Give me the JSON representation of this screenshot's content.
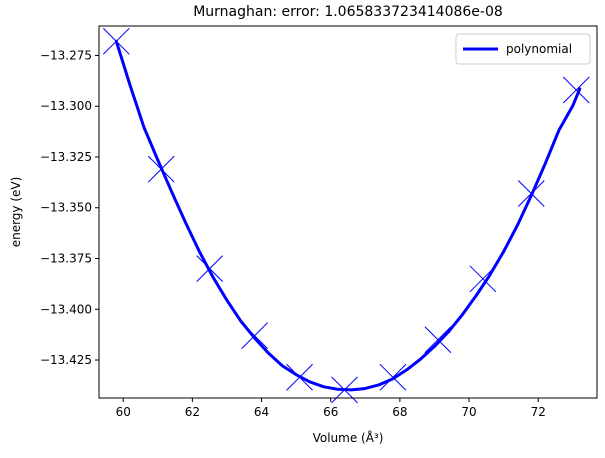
{
  "chart_data": {
    "type": "line",
    "title": "Murnaghan: error: 1.065833723414086e-08",
    "xlabel": "Volume (Å³)",
    "ylabel": "energy (eV)",
    "xlim": [
      59.3,
      73.7
    ],
    "ylim": [
      -13.4437,
      -13.2605
    ],
    "x_ticks": [
      60,
      62,
      64,
      66,
      68,
      70,
      72
    ],
    "y_ticks": [
      -13.275,
      -13.3,
      -13.325,
      -13.35,
      -13.375,
      -13.4,
      -13.425
    ],
    "x_tick_labels": [
      "60",
      "62",
      "64",
      "66",
      "68",
      "70",
      "72"
    ],
    "y_tick_labels": [
      "−13.275",
      "−13.300",
      "−13.325",
      "−13.350",
      "−13.375",
      "−13.400",
      "−13.425"
    ],
    "grid": false,
    "legend_position": "top-right",
    "series": [
      {
        "name": "polynomial",
        "kind": "line",
        "color": "#0000ff",
        "x": [
          59.8,
          60.2,
          60.6,
          61.0,
          61.4,
          61.8,
          62.2,
          62.6,
          63.0,
          63.4,
          63.8,
          64.2,
          64.6,
          65.0,
          65.4,
          65.8,
          66.2,
          66.6,
          67.0,
          67.4,
          67.8,
          68.2,
          68.6,
          69.0,
          69.4,
          69.8,
          70.2,
          70.6,
          71.0,
          71.4,
          71.8,
          72.2,
          72.6,
          73.0,
          73.2
        ],
        "y": [
          -13.268,
          -13.2898,
          -13.3104,
          -13.3265,
          -13.3421,
          -13.3572,
          -13.3715,
          -13.3843,
          -13.3956,
          -13.4058,
          -13.4142,
          -13.4216,
          -13.4278,
          -13.4322,
          -13.4358,
          -13.4382,
          -13.4394,
          -13.4397,
          -13.439,
          -13.4372,
          -13.4342,
          -13.4298,
          -13.4245,
          -13.4183,
          -13.4112,
          -13.4028,
          -13.3934,
          -13.3832,
          -13.3716,
          -13.3586,
          -13.344,
          -13.3284,
          -13.3118,
          -13.2998,
          -13.2915
        ]
      },
      {
        "name": "",
        "kind": "markers",
        "marker": "x",
        "color": "#0000ff",
        "x": [
          59.8,
          61.1,
          62.5,
          63.8,
          65.1,
          66.4,
          67.8,
          69.1,
          70.4,
          71.8,
          73.1
        ],
        "y": [
          -13.268,
          -13.331,
          -13.38,
          -13.413,
          -13.4335,
          -13.4397,
          -13.4335,
          -13.415,
          -13.385,
          -13.343,
          -13.292
        ]
      }
    ]
  }
}
